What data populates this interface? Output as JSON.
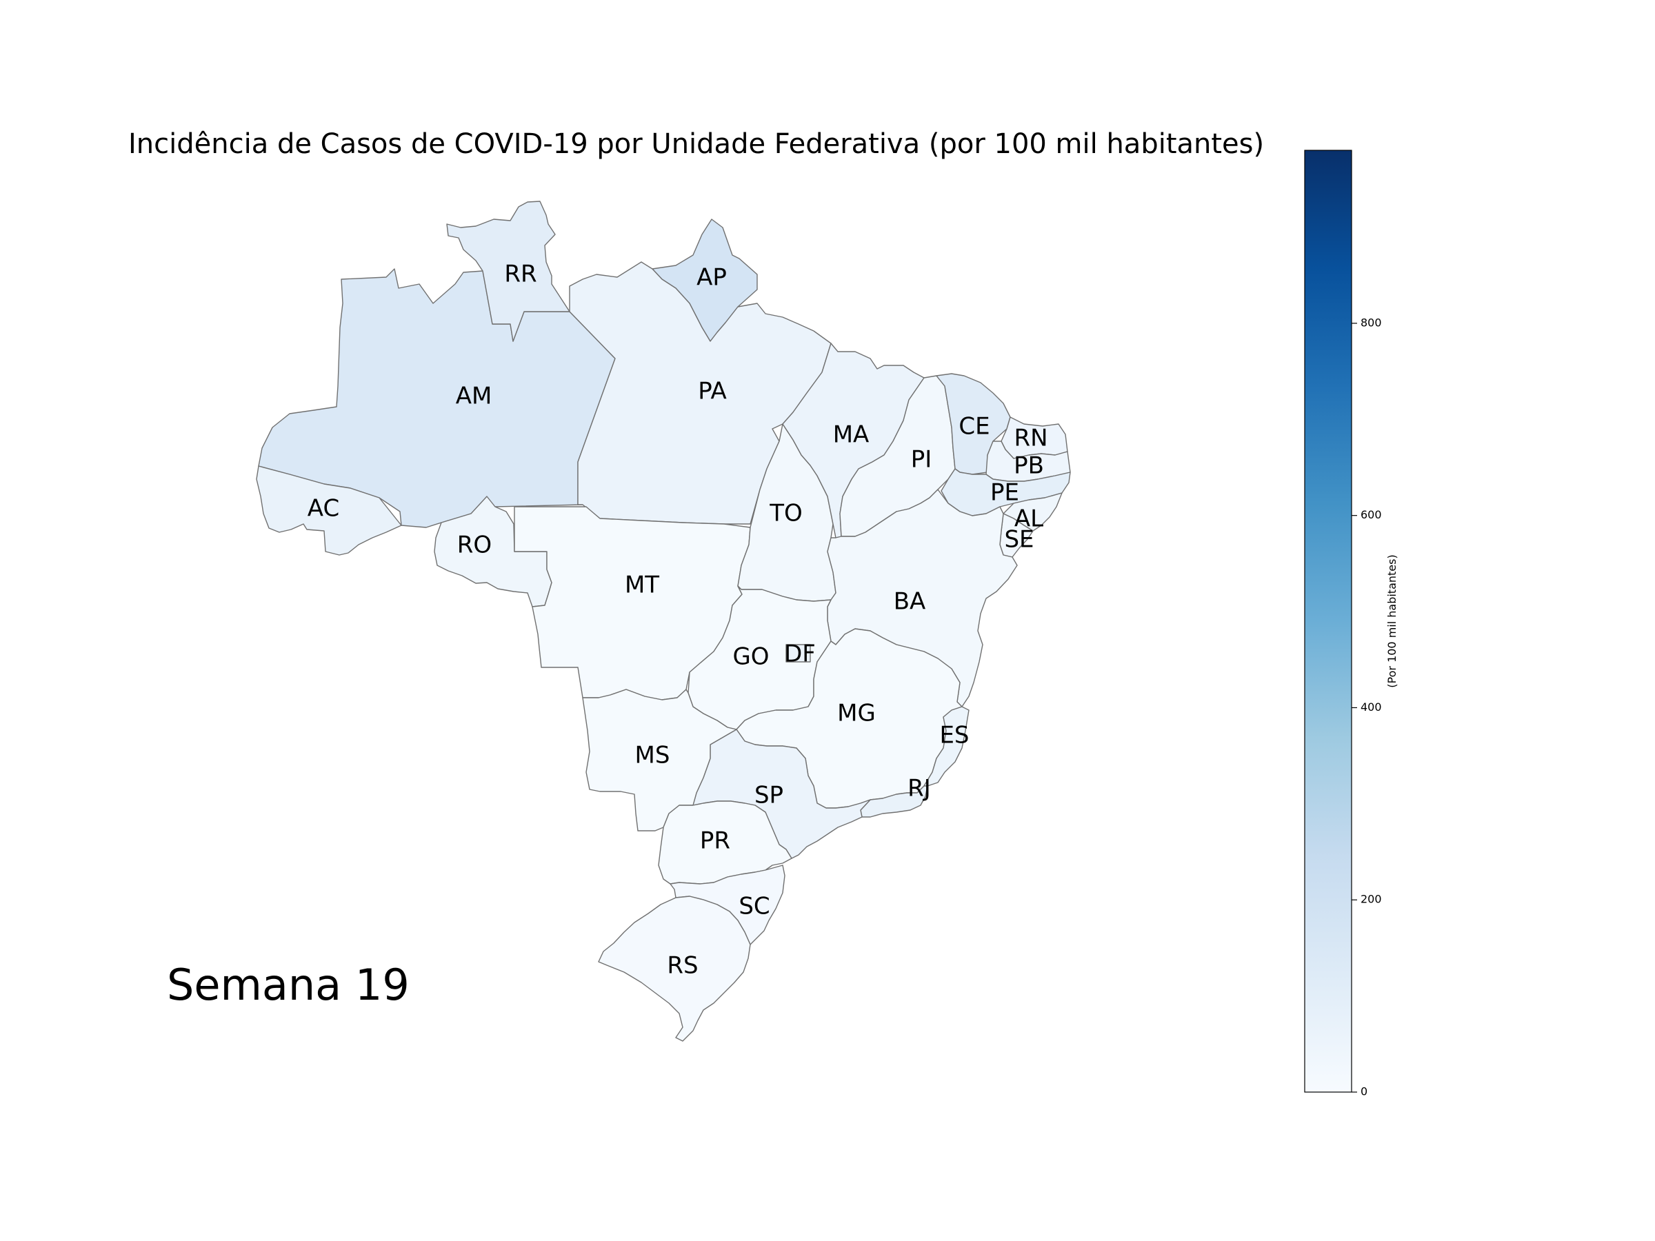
{
  "title": "Incidência de Casos de COVID-19 por Unidade Federativa (por 100 mil habitantes)",
  "week_label": "Semana 19",
  "colorbar": {
    "label": "(Por 100 mil habitantes)",
    "min": 0,
    "max": 980,
    "ticks": [
      0,
      200,
      400,
      600,
      800
    ],
    "tick_labels": [
      "0",
      "200",
      "400",
      "600",
      "800"
    ],
    "colormap": "Blues",
    "colors": [
      "#f7fbff",
      "#deebf7",
      "#c6dbef",
      "#9ecae1",
      "#6baed6",
      "#4292c6",
      "#2171b5",
      "#08519c",
      "#08306b"
    ]
  },
  "states": [
    {
      "id": "AM",
      "label": "AM",
      "value": 145
    },
    {
      "id": "RR",
      "label": "RR",
      "value": 105
    },
    {
      "id": "AP",
      "label": "AP",
      "value": 175
    },
    {
      "id": "PA",
      "label": "PA",
      "value": 60
    },
    {
      "id": "AC",
      "label": "AC",
      "value": 70
    },
    {
      "id": "RO",
      "label": "RO",
      "value": 40
    },
    {
      "id": "MT",
      "label": "MT",
      "value": 10
    },
    {
      "id": "TO",
      "label": "TO",
      "value": 25
    },
    {
      "id": "MA",
      "label": "MA",
      "value": 60
    },
    {
      "id": "PI",
      "label": "PI",
      "value": 25
    },
    {
      "id": "CE",
      "label": "CE",
      "value": 120
    },
    {
      "id": "RN",
      "label": "RN",
      "value": 50
    },
    {
      "id": "PB",
      "label": "PB",
      "value": 45
    },
    {
      "id": "PE",
      "label": "PE",
      "value": 95
    },
    {
      "id": "AL",
      "label": "AL",
      "value": 40
    },
    {
      "id": "SE",
      "label": "SE",
      "value": 30
    },
    {
      "id": "BA",
      "label": "BA",
      "value": 25
    },
    {
      "id": "GO",
      "label": "GO",
      "value": 10
    },
    {
      "id": "DF",
      "label": "DF",
      "value": 60
    },
    {
      "id": "MG",
      "label": "MG",
      "value": 10
    },
    {
      "id": "ES",
      "label": "ES",
      "value": 55
    },
    {
      "id": "RJ",
      "label": "RJ",
      "value": 70
    },
    {
      "id": "SP",
      "label": "SP",
      "value": 60
    },
    {
      "id": "MS",
      "label": "MS",
      "value": 10
    },
    {
      "id": "PR",
      "label": "PR",
      "value": 10
    },
    {
      "id": "SC",
      "label": "SC",
      "value": 20
    },
    {
      "id": "RS",
      "label": "RS",
      "value": 15
    }
  ]
}
